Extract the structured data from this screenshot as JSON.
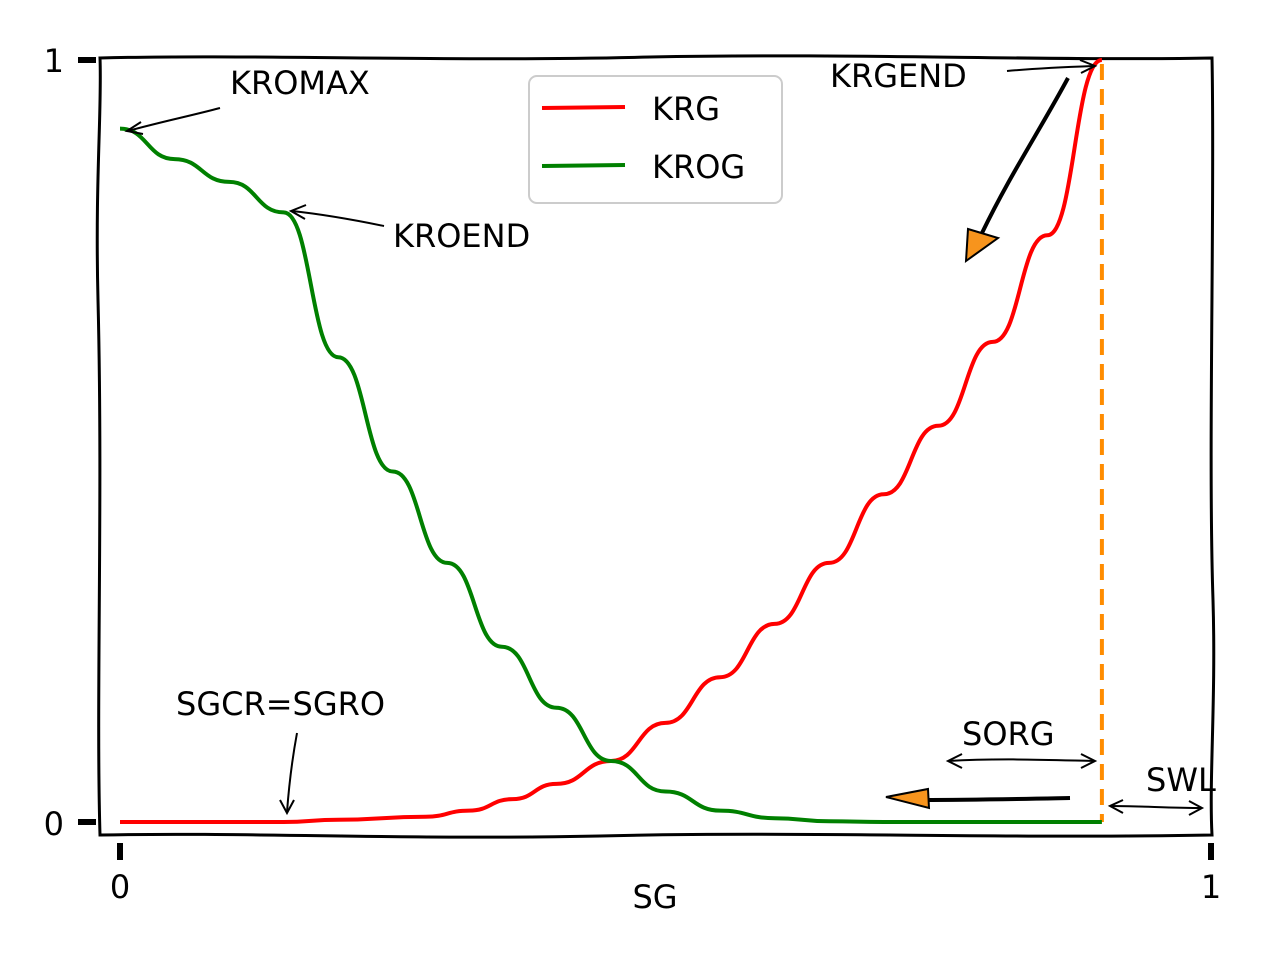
{
  "chart_data": {
    "type": "line",
    "title": "",
    "xlabel": "SG",
    "ylabel": "",
    "xlim": [
      0,
      1
    ],
    "ylim": [
      0,
      1
    ],
    "xticks": [
      "0",
      "1"
    ],
    "yticks": [
      "0",
      "1"
    ],
    "grid": false,
    "legend_position": "top-center",
    "series": [
      {
        "name": "KRG",
        "color": "#ff0000",
        "x": [
          0.0,
          0.15,
          0.2,
          0.28,
          0.32,
          0.36,
          0.4,
          0.45,
          0.5,
          0.55,
          0.6,
          0.65,
          0.7,
          0.75,
          0.8,
          0.85,
          0.9
        ],
        "y": [
          0.0,
          0.0,
          0.003,
          0.007,
          0.015,
          0.03,
          0.05,
          0.08,
          0.13,
          0.19,
          0.26,
          0.34,
          0.43,
          0.52,
          0.63,
          0.77,
          1.0
        ]
      },
      {
        "name": "KROG",
        "color": "#008000",
        "x": [
          0.0,
          0.05,
          0.1,
          0.15,
          0.2,
          0.25,
          0.3,
          0.35,
          0.4,
          0.45,
          0.5,
          0.55,
          0.6,
          0.65,
          0.7,
          0.8,
          0.9
        ],
        "y": [
          0.91,
          0.87,
          0.84,
          0.8,
          0.61,
          0.46,
          0.34,
          0.23,
          0.15,
          0.08,
          0.04,
          0.015,
          0.005,
          0.001,
          0.0,
          0.0,
          0.0
        ]
      }
    ],
    "annotations": {
      "kromax": "KROMAX",
      "kroend": "KROEND",
      "krgend": "KRGEND",
      "sgcr": "SGCR=SGRO",
      "sorg": "SORG",
      "swl": "SWL"
    },
    "vline_x": 0.9,
    "vline_color": "#ff8c00",
    "arrow_fill": "#f7941d"
  }
}
